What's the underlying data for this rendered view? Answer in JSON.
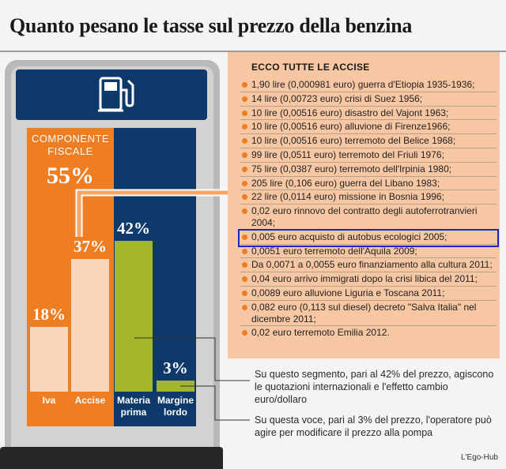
{
  "title": "Quanto pesano le tasse sul prezzo della benzina",
  "fiscal": {
    "label_line1": "COMPONENTE",
    "label_line2": "FISCALE",
    "total": "55%"
  },
  "colors": {
    "fiscal": "#ef7d22",
    "navy": "#0d3a6b",
    "bar_tax": "#f9d6bb",
    "bar_green": "#a3b62a",
    "accise_box": "#f7c7a3",
    "highlight": "#1428c8"
  },
  "chart_data": {
    "type": "bar",
    "categories": [
      "Iva",
      "Accise",
      "Materia prima",
      "Margine lordo"
    ],
    "values": [
      18,
      37,
      42,
      3
    ],
    "value_labels": [
      "18%",
      "37%",
      "42%",
      "3%"
    ],
    "ylim": [
      0,
      55
    ],
    "groups": {
      "Componente fiscale": [
        "Iva",
        "Accise"
      ]
    },
    "title": "Quanto pesano le tasse sul prezzo della benzina"
  },
  "bar_label_lines": [
    [
      "Iva"
    ],
    [
      "Accise"
    ],
    [
      "Materia",
      "prima"
    ],
    [
      "Margine",
      "lordo"
    ]
  ],
  "accise": {
    "title": "ECCO TUTTE LE ACCISE",
    "items": [
      "1,90 lire (0,000981 euro) guerra d'Etiopia 1935-1936;",
      "14 lire (0,00723 euro) crisi di Suez 1956;",
      "10 lire (0,00516 euro) disastro del Vajont 1963;",
      "10 lire (0,00516 euro) alluvione di Firenze1966;",
      "10 lire (0,00516 euro) terremoto del Belice 1968;",
      "99 lire (0,0511 euro) terremoto del Friuli 1976;",
      "75 lire (0,0387 euro) terremoto dell'Irpinia 1980;",
      "205 lire (0,106 euro) guerra del Libano 1983;",
      "22 lire (0,0114 euro) missione in Bosnia 1996;",
      "0,02 euro rinnovo del contratto degli autoferrotranvieri 2004;",
      "0,005 euro acquisto di autobus ecologici 2005;",
      "0,0051 euro terremoto dell'Aquila 2009;",
      "Da 0,0071 a 0,0055 euro finanziamento alla cultura 2011;",
      "0,04 euro arrivo immigrati dopo la crisi libica del 2011;",
      "0,0089 euro alluvione Liguria e Toscana 2011;",
      "0,082 euro (0,113 sul diesel) decreto \"Salva Italia\" nel dicembre 2011;",
      "0,02 euro terremoto Emilia 2012."
    ],
    "highlighted_index": 10
  },
  "notes": {
    "materia_prima": "Su questo segmento, pari al 42% del prezzo, agiscono le quotazioni internazionali e l'effetto cambio euro/dollaro",
    "margine": "Su questa voce, pari al 3% del prezzo, l'operatore può agire per  modificare il prezzo alla pompa"
  },
  "source": "L'Ego-Hub",
  "icons": {
    "pump": "fuel-pump-icon",
    "bullet": "bullet-dot-icon"
  }
}
